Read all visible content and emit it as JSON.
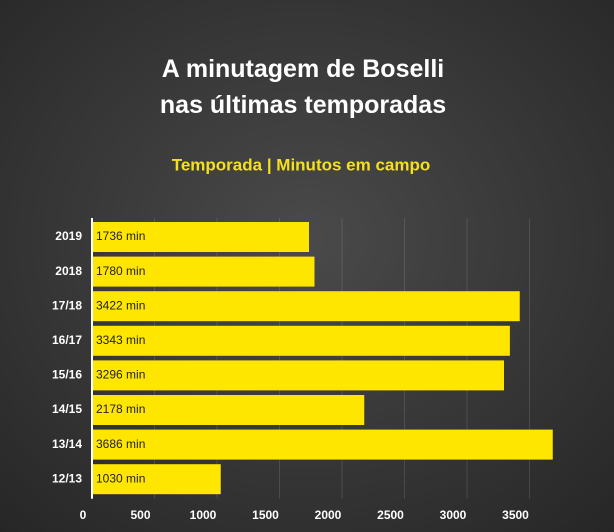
{
  "chart_data": {
    "type": "bar",
    "orientation": "horizontal",
    "title": "A minutagem de Boselli nas últimas temporadas",
    "subtitle": "Temporada | Minutos em campo",
    "categories": [
      "2019",
      "2018",
      "17/18",
      "16/17",
      "15/16",
      "14/15",
      "13/14",
      "12/13"
    ],
    "values": [
      1736,
      1780,
      3422,
      3343,
      3296,
      2178,
      3686,
      1030
    ],
    "value_labels": [
      "1736 min",
      "1780 min",
      "3422 min",
      "3343 min",
      "3296 min",
      "2178 min",
      "3686 min",
      "1030 min"
    ],
    "color": "#ffe600",
    "xlim": [
      0,
      4000
    ],
    "xticks": [
      0,
      500,
      1000,
      1500,
      2000,
      2500,
      3000,
      3500
    ],
    "grid": true
  }
}
